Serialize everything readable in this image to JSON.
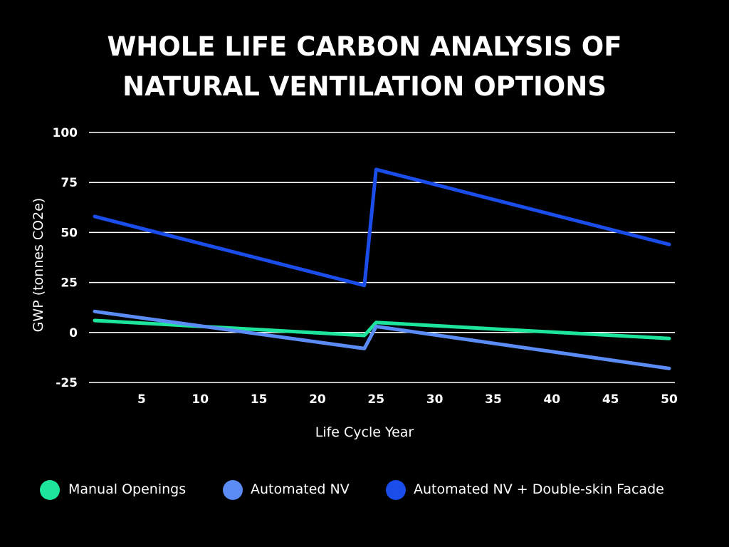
{
  "chart_data": {
    "type": "line",
    "title_lines": [
      "WHOLE LIFE CARBON ANALYSIS OF",
      "NATURAL VENTILATION OPTIONS"
    ],
    "xlabel": "Life Cycle Year",
    "ylabel": "GWP (tonnes CO2e)",
    "xlim": [
      1,
      50
    ],
    "ylim": [
      -25,
      100
    ],
    "x_ticks": [
      5,
      10,
      15,
      20,
      25,
      30,
      35,
      40,
      45,
      50
    ],
    "y_ticks": [
      -25,
      0,
      25,
      50,
      75,
      100
    ],
    "grid": true,
    "legend_position": "bottom",
    "series": [
      {
        "name": "Manual Openings",
        "color": "#1de59b",
        "x": [
          1,
          24,
          25,
          50
        ],
        "y": [
          6,
          -1.5,
          5,
          -3
        ]
      },
      {
        "name": "Automated NV",
        "color": "#5b8cf5",
        "x": [
          1,
          24,
          25,
          50
        ],
        "y": [
          10.5,
          -8,
          3,
          -18
        ]
      },
      {
        "name": "Automated NV + Double-skin Facade",
        "color": "#1a4dea",
        "x": [
          1,
          24,
          25,
          50
        ],
        "y": [
          58,
          23.5,
          81.5,
          44
        ]
      }
    ]
  }
}
